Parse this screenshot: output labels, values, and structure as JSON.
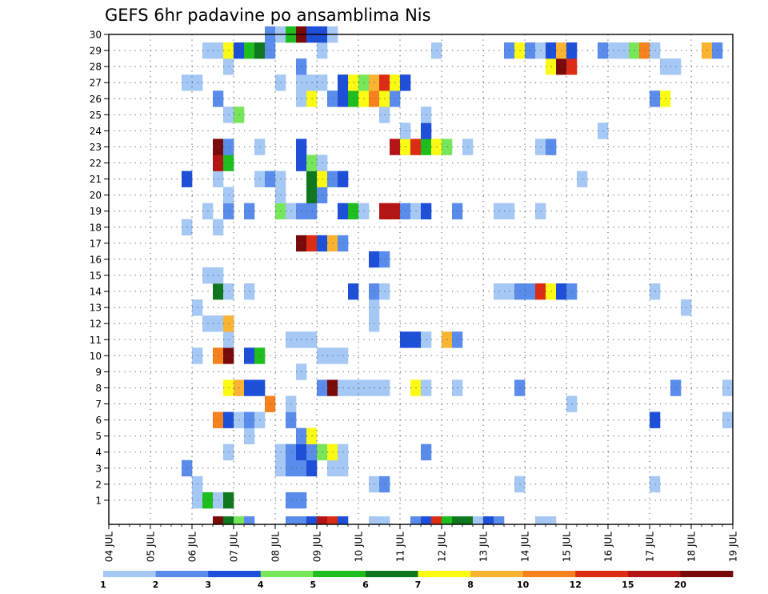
{
  "chart_data": {
    "type": "heatmap",
    "title": "GEFS 6hr padavine po ansamblima Nis",
    "x_labels": [
      "04 JUL",
      "05 JUL",
      "06 JUL",
      "07 JUL",
      "08 JUL",
      "09 JUL",
      "10 JUL",
      "11 JUL",
      "12 JUL",
      "13 JUL",
      "14 JUL",
      "15 JUL",
      "16 JUL",
      "17 JUL",
      "18 JUL",
      "19 JUL"
    ],
    "y_labels": [
      "1",
      "2",
      "3",
      "4",
      "5",
      "6",
      "7",
      "8",
      "9",
      "10",
      "11",
      "12",
      "13",
      "14",
      "15",
      "16",
      "17",
      "18",
      "19",
      "20",
      "21",
      "22",
      "23",
      "24",
      "25",
      "26",
      "27",
      "28",
      "29",
      "30"
    ],
    "x_range": [
      0,
      60
    ],
    "y_range": [
      0,
      30
    ],
    "grid": true,
    "legend_position": "bottom",
    "legend_labels": [
      "1",
      "2",
      "3",
      "4",
      "5",
      "6",
      "7",
      "8",
      "10",
      "12",
      "15",
      "20"
    ],
    "legend_colors": [
      "#a6c8f5",
      "#5a8ceb",
      "#1e4fd8",
      "#78e65a",
      "#1ebe1e",
      "#0f781e",
      "#fafa14",
      "#fab432",
      "#f5821e",
      "#dc2d14",
      "#b41414",
      "#780a0a"
    ],
    "cells": [
      [
        10,
        -1,
        11
      ],
      [
        11,
        -1,
        5
      ],
      [
        12,
        -1,
        3
      ],
      [
        13,
        -1,
        1
      ],
      [
        17,
        -1,
        1
      ],
      [
        18,
        -1,
        1
      ],
      [
        19,
        -1,
        2
      ],
      [
        20,
        -1,
        10
      ],
      [
        21,
        -1,
        9
      ],
      [
        22,
        -1,
        2
      ],
      [
        25,
        -1,
        0
      ],
      [
        26,
        -1,
        0
      ],
      [
        29,
        -1,
        1
      ],
      [
        30,
        -1,
        2
      ],
      [
        31,
        -1,
        9
      ],
      [
        32,
        -1,
        4
      ],
      [
        33,
        -1,
        5
      ],
      [
        34,
        -1,
        5
      ],
      [
        35,
        -1,
        0
      ],
      [
        36,
        -1,
        2
      ],
      [
        37,
        -1,
        1
      ],
      [
        41,
        -1,
        0
      ],
      [
        42,
        -1,
        0
      ],
      [
        8,
        0,
        0
      ],
      [
        9,
        0,
        4
      ],
      [
        10,
        0,
        0
      ],
      [
        11,
        0,
        5
      ],
      [
        17,
        0,
        1
      ],
      [
        18,
        0,
        1
      ],
      [
        8,
        1,
        0
      ],
      [
        25,
        1,
        0
      ],
      [
        26,
        1,
        1
      ],
      [
        39,
        1,
        0
      ],
      [
        52,
        1,
        0
      ],
      [
        7,
        2,
        1
      ],
      [
        16,
        2,
        0
      ],
      [
        17,
        2,
        1
      ],
      [
        18,
        2,
        1
      ],
      [
        19,
        2,
        2
      ],
      [
        21,
        2,
        0
      ],
      [
        22,
        2,
        0
      ],
      [
        11,
        3,
        0
      ],
      [
        16,
        3,
        0
      ],
      [
        17,
        3,
        1
      ],
      [
        18,
        3,
        2
      ],
      [
        19,
        3,
        1
      ],
      [
        20,
        3,
        3
      ],
      [
        21,
        3,
        6
      ],
      [
        22,
        3,
        0
      ],
      [
        30,
        3,
        1
      ],
      [
        13,
        4,
        0
      ],
      [
        18,
        4,
        1
      ],
      [
        19,
        4,
        6
      ],
      [
        10,
        5,
        8
      ],
      [
        11,
        5,
        2
      ],
      [
        12,
        5,
        0
      ],
      [
        13,
        5,
        1
      ],
      [
        14,
        5,
        0
      ],
      [
        17,
        5,
        1
      ],
      [
        52,
        5,
        2
      ],
      [
        59,
        5,
        0
      ],
      [
        15,
        6,
        8
      ],
      [
        17,
        6,
        0
      ],
      [
        44,
        6,
        0
      ],
      [
        11,
        7,
        6
      ],
      [
        12,
        7,
        7
      ],
      [
        13,
        7,
        2
      ],
      [
        14,
        7,
        2
      ],
      [
        20,
        7,
        1
      ],
      [
        21,
        7,
        11
      ],
      [
        22,
        7,
        0
      ],
      [
        23,
        7,
        0
      ],
      [
        24,
        7,
        0
      ],
      [
        25,
        7,
        0
      ],
      [
        26,
        7,
        0
      ],
      [
        29,
        7,
        6
      ],
      [
        30,
        7,
        0
      ],
      [
        33,
        7,
        0
      ],
      [
        39,
        7,
        1
      ],
      [
        54,
        7,
        1
      ],
      [
        59,
        7,
        0
      ],
      [
        18,
        8,
        0
      ],
      [
        8,
        9,
        0
      ],
      [
        10,
        9,
        8
      ],
      [
        11,
        9,
        11
      ],
      [
        13,
        9,
        2
      ],
      [
        14,
        9,
        4
      ],
      [
        20,
        9,
        0
      ],
      [
        21,
        9,
        0
      ],
      [
        22,
        9,
        0
      ],
      [
        11,
        10,
        0
      ],
      [
        17,
        10,
        0
      ],
      [
        18,
        10,
        0
      ],
      [
        19,
        10,
        0
      ],
      [
        28,
        10,
        2
      ],
      [
        29,
        10,
        2
      ],
      [
        30,
        10,
        0
      ],
      [
        32,
        10,
        7
      ],
      [
        33,
        10,
        1
      ],
      [
        9,
        11,
        0
      ],
      [
        10,
        11,
        0
      ],
      [
        11,
        11,
        7
      ],
      [
        25,
        11,
        0
      ],
      [
        8,
        12,
        0
      ],
      [
        25,
        12,
        0
      ],
      [
        55,
        12,
        0
      ],
      [
        10,
        13,
        5
      ],
      [
        11,
        13,
        0
      ],
      [
        13,
        13,
        0
      ],
      [
        23,
        13,
        2
      ],
      [
        25,
        13,
        1
      ],
      [
        26,
        13,
        0
      ],
      [
        37,
        13,
        0
      ],
      [
        38,
        13,
        0
      ],
      [
        39,
        13,
        1
      ],
      [
        40,
        13,
        1
      ],
      [
        41,
        13,
        9
      ],
      [
        42,
        13,
        6
      ],
      [
        43,
        13,
        2
      ],
      [
        44,
        13,
        1
      ],
      [
        52,
        13,
        0
      ],
      [
        9,
        14,
        0
      ],
      [
        10,
        14,
        0
      ],
      [
        25,
        15,
        2
      ],
      [
        26,
        15,
        1
      ],
      [
        18,
        16,
        11
      ],
      [
        19,
        16,
        9
      ],
      [
        20,
        16,
        2
      ],
      [
        21,
        16,
        7
      ],
      [
        22,
        16,
        1
      ],
      [
        7,
        17,
        0
      ],
      [
        10,
        17,
        0
      ],
      [
        9,
        18,
        0
      ],
      [
        11,
        18,
        1
      ],
      [
        13,
        18,
        1
      ],
      [
        16,
        18,
        3
      ],
      [
        17,
        18,
        0
      ],
      [
        18,
        18,
        1
      ],
      [
        19,
        18,
        1
      ],
      [
        22,
        18,
        2
      ],
      [
        23,
        18,
        4
      ],
      [
        24,
        18,
        0
      ],
      [
        26,
        18,
        10
      ],
      [
        27,
        18,
        10
      ],
      [
        28,
        18,
        1
      ],
      [
        29,
        18,
        0
      ],
      [
        30,
        18,
        2
      ],
      [
        33,
        18,
        1
      ],
      [
        37,
        18,
        0
      ],
      [
        38,
        18,
        0
      ],
      [
        41,
        18,
        0
      ],
      [
        11,
        19,
        0
      ],
      [
        16,
        19,
        0
      ],
      [
        19,
        19,
        5
      ],
      [
        20,
        19,
        1
      ],
      [
        7,
        20,
        2
      ],
      [
        10,
        20,
        0
      ],
      [
        14,
        20,
        0
      ],
      [
        15,
        20,
        1
      ],
      [
        16,
        20,
        0
      ],
      [
        19,
        20,
        5
      ],
      [
        20,
        20,
        6
      ],
      [
        21,
        20,
        1
      ],
      [
        22,
        20,
        2
      ],
      [
        45,
        20,
        0
      ],
      [
        10,
        21,
        10
      ],
      [
        11,
        21,
        4
      ],
      [
        18,
        21,
        2
      ],
      [
        19,
        21,
        3
      ],
      [
        20,
        21,
        0
      ],
      [
        10,
        22,
        11
      ],
      [
        11,
        22,
        1
      ],
      [
        14,
        22,
        0
      ],
      [
        18,
        22,
        2
      ],
      [
        27,
        22,
        10
      ],
      [
        28,
        22,
        6
      ],
      [
        29,
        22,
        9
      ],
      [
        30,
        22,
        4
      ],
      [
        31,
        22,
        6
      ],
      [
        32,
        22,
        3
      ],
      [
        34,
        22,
        0
      ],
      [
        41,
        22,
        0
      ],
      [
        42,
        22,
        1
      ],
      [
        28,
        23,
        0
      ],
      [
        30,
        23,
        2
      ],
      [
        47,
        23,
        0
      ],
      [
        11,
        24,
        0
      ],
      [
        12,
        24,
        3
      ],
      [
        26,
        24,
        0
      ],
      [
        30,
        24,
        0
      ],
      [
        10,
        25,
        1
      ],
      [
        18,
        25,
        0
      ],
      [
        19,
        25,
        6
      ],
      [
        21,
        25,
        1
      ],
      [
        22,
        25,
        2
      ],
      [
        23,
        25,
        4
      ],
      [
        24,
        25,
        6
      ],
      [
        25,
        25,
        8
      ],
      [
        26,
        25,
        6
      ],
      [
        27,
        25,
        1
      ],
      [
        52,
        25,
        1
      ],
      [
        53,
        25,
        6
      ],
      [
        7,
        26,
        0
      ],
      [
        8,
        26,
        0
      ],
      [
        16,
        26,
        0
      ],
      [
        18,
        26,
        0
      ],
      [
        19,
        26,
        0
      ],
      [
        20,
        26,
        0
      ],
      [
        22,
        26,
        2
      ],
      [
        23,
        26,
        6
      ],
      [
        24,
        26,
        3
      ],
      [
        25,
        26,
        7
      ],
      [
        26,
        26,
        9
      ],
      [
        27,
        26,
        6
      ],
      [
        28,
        26,
        2
      ],
      [
        11,
        27,
        0
      ],
      [
        18,
        27,
        1
      ],
      [
        42,
        27,
        6
      ],
      [
        43,
        27,
        11
      ],
      [
        44,
        27,
        9
      ],
      [
        53,
        27,
        0
      ],
      [
        54,
        27,
        0
      ],
      [
        9,
        28,
        0
      ],
      [
        10,
        28,
        0
      ],
      [
        11,
        28,
        6
      ],
      [
        12,
        28,
        2
      ],
      [
        13,
        28,
        4
      ],
      [
        14,
        28,
        5
      ],
      [
        15,
        28,
        1
      ],
      [
        20,
        28,
        0
      ],
      [
        31,
        28,
        0
      ],
      [
        38,
        28,
        1
      ],
      [
        39,
        28,
        6
      ],
      [
        40,
        28,
        1
      ],
      [
        41,
        28,
        0
      ],
      [
        42,
        28,
        2
      ],
      [
        43,
        28,
        7
      ],
      [
        44,
        28,
        2
      ],
      [
        47,
        28,
        1
      ],
      [
        48,
        28,
        0
      ],
      [
        49,
        28,
        0
      ],
      [
        50,
        28,
        3
      ],
      [
        51,
        28,
        8
      ],
      [
        52,
        28,
        0
      ],
      [
        57,
        28,
        7
      ],
      [
        58,
        28,
        1
      ],
      [
        15,
        29,
        1
      ],
      [
        16,
        29,
        0
      ],
      [
        17,
        29,
        4
      ],
      [
        18,
        29,
        11
      ],
      [
        19,
        29,
        2
      ],
      [
        20,
        29,
        2
      ],
      [
        21,
        29,
        0
      ]
    ]
  }
}
